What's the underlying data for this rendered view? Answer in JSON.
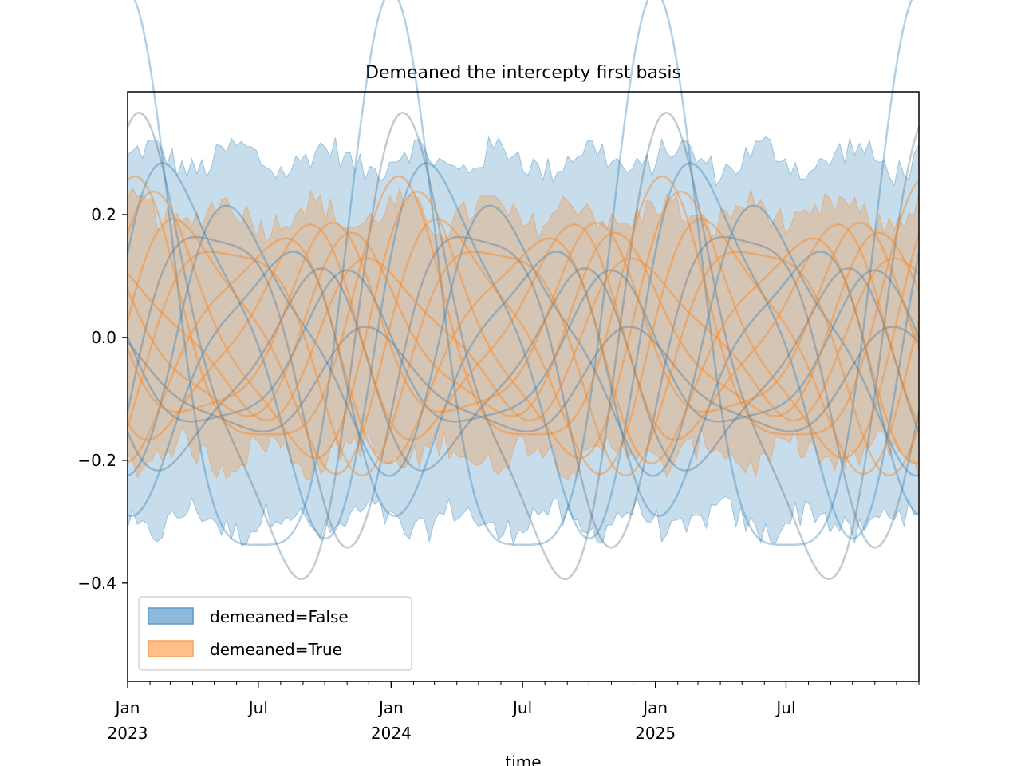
{
  "chart_data": {
    "type": "line",
    "title": "Demeaned the intercepty first basis",
    "xlabel": "time",
    "ylabel": "",
    "x_range": [
      "2023-01-01",
      "2025-12-31"
    ],
    "ylim": [
      -0.56,
      0.4
    ],
    "y_ticks": [
      -0.4,
      -0.2,
      0.0,
      0.2
    ],
    "y_tick_labels": [
      "−0.4",
      "−0.2",
      "0.0",
      "0.2"
    ],
    "x_ticks": [
      {
        "date": "2023-01-01",
        "label": "Jan",
        "sublabel": "2023"
      },
      {
        "date": "2023-07-01",
        "label": "Jul",
        "sublabel": ""
      },
      {
        "date": "2024-01-01",
        "label": "Jan",
        "sublabel": "2024"
      },
      {
        "date": "2024-07-01",
        "label": "Jul",
        "sublabel": ""
      },
      {
        "date": "2025-01-01",
        "label": "Jan",
        "sublabel": "2025"
      },
      {
        "date": "2025-07-01",
        "label": "Jul",
        "sublabel": ""
      }
    ],
    "grid": false,
    "legend_position": "lower-left",
    "series": [
      {
        "name": "demeaned=False",
        "color": "#1f77b4",
        "band": {
          "upper_mean": 0.29,
          "lower_mean": -0.3
        },
        "curves": [
          {
            "offset": 0.0,
            "amplitude": 0.45,
            "phase_days": 0
          },
          {
            "offset": -0.05,
            "amplitude": 0.35,
            "phase_days": 30
          },
          {
            "offset": 0.0,
            "amplitude": 0.28,
            "phase_days": 75
          },
          {
            "offset": -0.03,
            "amplitude": 0.25,
            "phase_days": 120
          },
          {
            "offset": -0.05,
            "amplitude": 0.2,
            "phase_days": 200
          },
          {
            "offset": -0.06,
            "amplitude": 0.15,
            "phase_days": 250
          },
          {
            "offset": -0.04,
            "amplitude": 0.12,
            "phase_days": 300
          },
          {
            "offset": -0.08,
            "amplitude": 0.08,
            "phase_days": 340
          },
          {
            "offset": 0.0,
            "amplitude": 0.2,
            "phase_days": 160
          }
        ]
      },
      {
        "name": "demeaned=True",
        "color": "#ff7f0e",
        "band": {
          "upper_mean": 0.2,
          "lower_mean": -0.19
        },
        "curves": [
          {
            "offset": 0.0,
            "amplitude": 0.21,
            "phase_days": 10
          },
          {
            "offset": 0.0,
            "amplitude": 0.2,
            "phase_days": 50
          },
          {
            "offset": 0.0,
            "amplitude": 0.19,
            "phase_days": 90
          },
          {
            "offset": 0.0,
            "amplitude": 0.18,
            "phase_days": 140
          },
          {
            "offset": 0.0,
            "amplitude": 0.17,
            "phase_days": 190
          },
          {
            "offset": 0.0,
            "amplitude": 0.16,
            "phase_days": 235
          },
          {
            "offset": 0.0,
            "amplitude": 0.15,
            "phase_days": 280
          },
          {
            "offset": 0.0,
            "amplitude": 0.14,
            "phase_days": 320
          },
          {
            "offset": 0.0,
            "amplitude": 0.12,
            "phase_days": 355
          }
        ]
      }
    ]
  },
  "legend": {
    "items": [
      {
        "label": "demeaned=False",
        "fill": "#8fb8da",
        "edge": "#1f77b4"
      },
      {
        "label": "demeaned=True",
        "fill": "#ffbf86",
        "edge": "#ff7f0e"
      }
    ]
  }
}
